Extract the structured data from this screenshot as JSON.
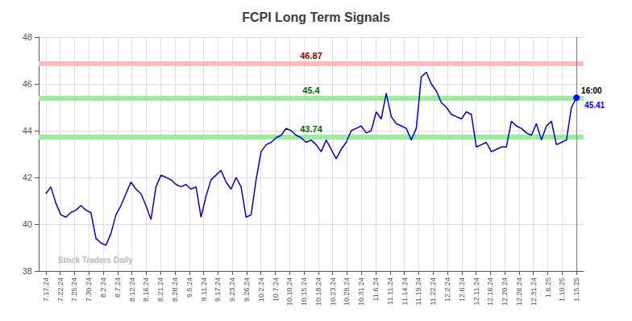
{
  "chart_data": {
    "type": "line",
    "title": "FCPI Long Term Signals",
    "color": "#0000cc",
    "x": [
      0,
      0.3491,
      0.6981,
      1.0472,
      1.3962,
      1.7453,
      2.0943,
      2.4434,
      2.7925,
      3.1415,
      3.4906,
      3.8396,
      4.1887,
      4.5377,
      4.8868,
      5.2358,
      5.5849,
      5.934,
      6.283,
      6.6321,
      6.9811,
      7.3302,
      7.6792,
      8.0283,
      8.3774,
      8.7264,
      9.0755,
      9.4245,
      9.7736,
      10.1226,
      10.4717,
      10.8208,
      11.1698,
      11.5189,
      11.8679,
      12.217,
      12.566,
      12.9151,
      13.2642,
      13.6132,
      13.9623,
      14.3113,
      14.6604,
      15.0094,
      15.3585,
      15.7075,
      16.0566,
      16.4057,
      16.7547,
      17.1038,
      17.4528,
      17.8019,
      18.1509,
      18.5,
      18.8491,
      19.1981,
      19.5472,
      19.8962,
      20.2453,
      20.5943,
      20.9434,
      21.2925,
      21.6415,
      21.9906,
      22.3396,
      22.6887,
      23.0377,
      23.3868,
      23.7358,
      24.0849,
      24.434,
      24.783,
      25.1321,
      25.4811,
      25.8302,
      26.1792,
      26.5283,
      26.8774,
      27.2264,
      27.5755,
      27.9245,
      28.2736,
      28.6226,
      28.9717,
      29.3208,
      29.6698,
      30.0189,
      30.3679,
      30.717,
      31.066,
      31.4151,
      31.7642,
      32.1132,
      32.4623,
      32.8113,
      33.1604,
      33.5094,
      33.8585,
      34.2075,
      34.5566,
      34.9057,
      35.2547,
      35.6038,
      35.9528,
      36.3019,
      36.6509,
      37
    ],
    "values": [
      41.3,
      41.6,
      40.9,
      40.4,
      40.3,
      40.5,
      40.6,
      40.8,
      40.6,
      40.5,
      39.4,
      39.2,
      39.1,
      39.6,
      40.4,
      40.8,
      41.3,
      41.8,
      41.5,
      41.3,
      40.8,
      40.2,
      41.6,
      42.1,
      42.0,
      41.9,
      41.7,
      41.6,
      41.7,
      41.5,
      41.6,
      40.3,
      41.2,
      41.9,
      42.1,
      42.3,
      41.8,
      41.5,
      42.0,
      41.6,
      40.3,
      40.4,
      41.9,
      43.1,
      43.4,
      43.5,
      43.7,
      43.8,
      44.1,
      44.0,
      43.8,
      43.7,
      43.5,
      43.6,
      43.4,
      43.1,
      43.6,
      43.2,
      42.8,
      43.2,
      43.5,
      44.0,
      44.1,
      44.2,
      43.9,
      44.0,
      44.8,
      44.5,
      45.6,
      44.6,
      44.3,
      44.2,
      44.1,
      43.6,
      44.1,
      46.3,
      46.5,
      46.0,
      45.7,
      45.2,
      45.0,
      44.7,
      44.6,
      44.5,
      44.8,
      44.7,
      43.3,
      43.4,
      43.5,
      43.1,
      43.2,
      43.3,
      43.3,
      44.4,
      44.2,
      44.1,
      43.9,
      43.8,
      44.3,
      43.6,
      44.2,
      44.4,
      43.4,
      43.5,
      43.6,
      45.0,
      45.41
    ],
    "xlim": [
      -0.5,
      37.5
    ],
    "xticks": [
      {
        "value": 0,
        "label": "7.17.24"
      },
      {
        "value": 1,
        "label": "7.22.24"
      },
      {
        "value": 2,
        "label": "7.25.24"
      },
      {
        "value": 3,
        "label": "7.30.24"
      },
      {
        "value": 4,
        "label": "8.2.24"
      },
      {
        "value": 5,
        "label": "8.7.24"
      },
      {
        "value": 6,
        "label": "8.12.24"
      },
      {
        "value": 7,
        "label": "8.16.24"
      },
      {
        "value": 8,
        "label": "8.21.24"
      },
      {
        "value": 9,
        "label": "8.28.24"
      },
      {
        "value": 10,
        "label": "9.5.24"
      },
      {
        "value": 11,
        "label": "9.11.24"
      },
      {
        "value": 12,
        "label": "9.17.24"
      },
      {
        "value": 13,
        "label": "9.23.24"
      },
      {
        "value": 14,
        "label": "9.26.24"
      },
      {
        "value": 15,
        "label": "10.2.24"
      },
      {
        "value": 16,
        "label": "10.7.24"
      },
      {
        "value": 17,
        "label": "10.10.24"
      },
      {
        "value": 18,
        "label": "10.15.24"
      },
      {
        "value": 19,
        "label": "10.18.24"
      },
      {
        "value": 20,
        "label": "10.23.24"
      },
      {
        "value": 21,
        "label": "10.28.24"
      },
      {
        "value": 22,
        "label": "10.31.24"
      },
      {
        "value": 23,
        "label": "11.6.24"
      },
      {
        "value": 24,
        "label": "11.11.24"
      },
      {
        "value": 25,
        "label": "11.14.24"
      },
      {
        "value": 26,
        "label": "11.19.24"
      },
      {
        "value": 27,
        "label": "11.22.24"
      },
      {
        "value": 28,
        "label": "12.2.24"
      },
      {
        "value": 29,
        "label": "12.6.24"
      },
      {
        "value": 30,
        "label": "12.11.24"
      },
      {
        "value": 31,
        "label": "12.16.24"
      },
      {
        "value": 32,
        "label": "12.20.24"
      },
      {
        "value": 33,
        "label": "12.26.24"
      },
      {
        "value": 34,
        "label": "12.31.24"
      },
      {
        "value": 35,
        "label": "1.6.25"
      },
      {
        "value": 36,
        "label": "1.10.25"
      },
      {
        "value": 37,
        "label": "1.15.25"
      }
    ],
    "ylim": [
      38,
      48
    ],
    "yticks": [
      38,
      40,
      42,
      44,
      46,
      48
    ],
    "grid": true,
    "reference_lines": [
      {
        "y": 46.87,
        "color": "#ffbbbb",
        "label": "46.87",
        "label_color": "#990000"
      },
      {
        "y": 45.4,
        "color": "#99ee99",
        "label": "45.4",
        "label_color": "#006600"
      },
      {
        "y": 43.74,
        "color": "#99ee99",
        "label": "43.74",
        "label_color": "#006600"
      },
      {
        "x": 37,
        "color": "#888888"
      }
    ],
    "annotations": [
      {
        "text": "Stock Traders Daily",
        "x": 0.5,
        "y": 38.25,
        "color": "#bbbbbb"
      },
      {
        "text": "16:00",
        "x": 37,
        "y": 45.41,
        "color": "black"
      },
      {
        "text": "45.41",
        "x": 37,
        "y": 45.41,
        "color": "blue",
        "marker": "circle"
      }
    ]
  }
}
